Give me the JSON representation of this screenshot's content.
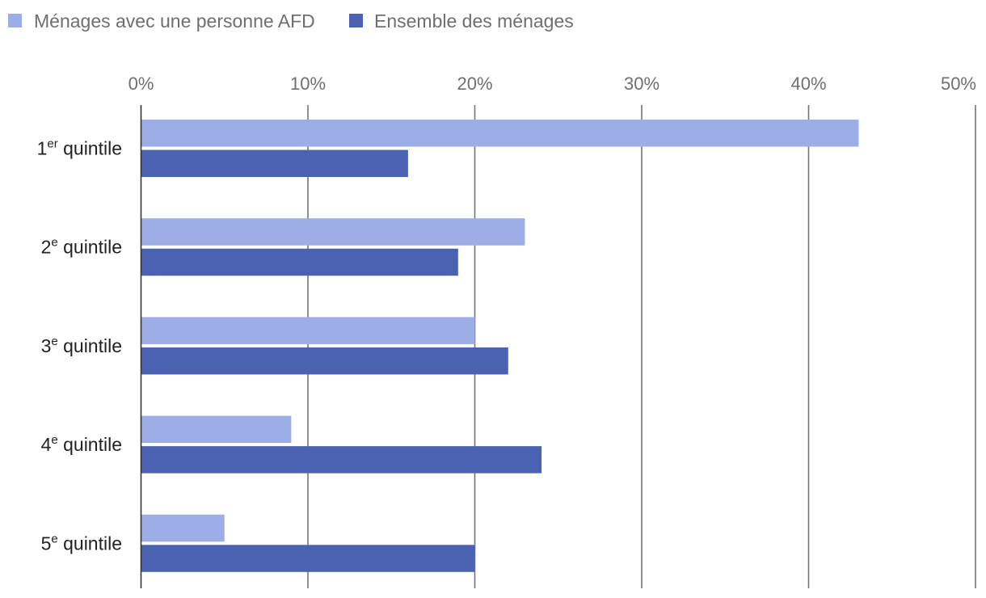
{
  "chart_data": {
    "type": "bar",
    "orientation": "horizontal",
    "title": "",
    "xlabel": "",
    "ylabel": "",
    "xlim": [
      0,
      50
    ],
    "tick_values": [
      0,
      10,
      20,
      30,
      40,
      50
    ],
    "tick_labels": [
      "0%",
      "10%",
      "20%",
      "30%",
      "40%",
      "50%"
    ],
    "tick_position": "top",
    "grid": true,
    "legend_position": "top-left",
    "categories": [
      {
        "base": "1",
        "sup": "er",
        "rest": " quintile"
      },
      {
        "base": "2",
        "sup": "e",
        "rest": " quintile"
      },
      {
        "base": "3",
        "sup": "e",
        "rest": " quintile"
      },
      {
        "base": "4",
        "sup": "e",
        "rest": " quintile"
      },
      {
        "base": "5",
        "sup": "e",
        "rest": " quintile"
      }
    ],
    "series": [
      {
        "name": "Ménages avec une personne AFD",
        "color": "#9dade6",
        "values": [
          43,
          23,
          20,
          9,
          5
        ]
      },
      {
        "name": "Ensemble des ménages",
        "color": "#4a62b1",
        "values": [
          16,
          19,
          22,
          24,
          20
        ]
      }
    ]
  }
}
